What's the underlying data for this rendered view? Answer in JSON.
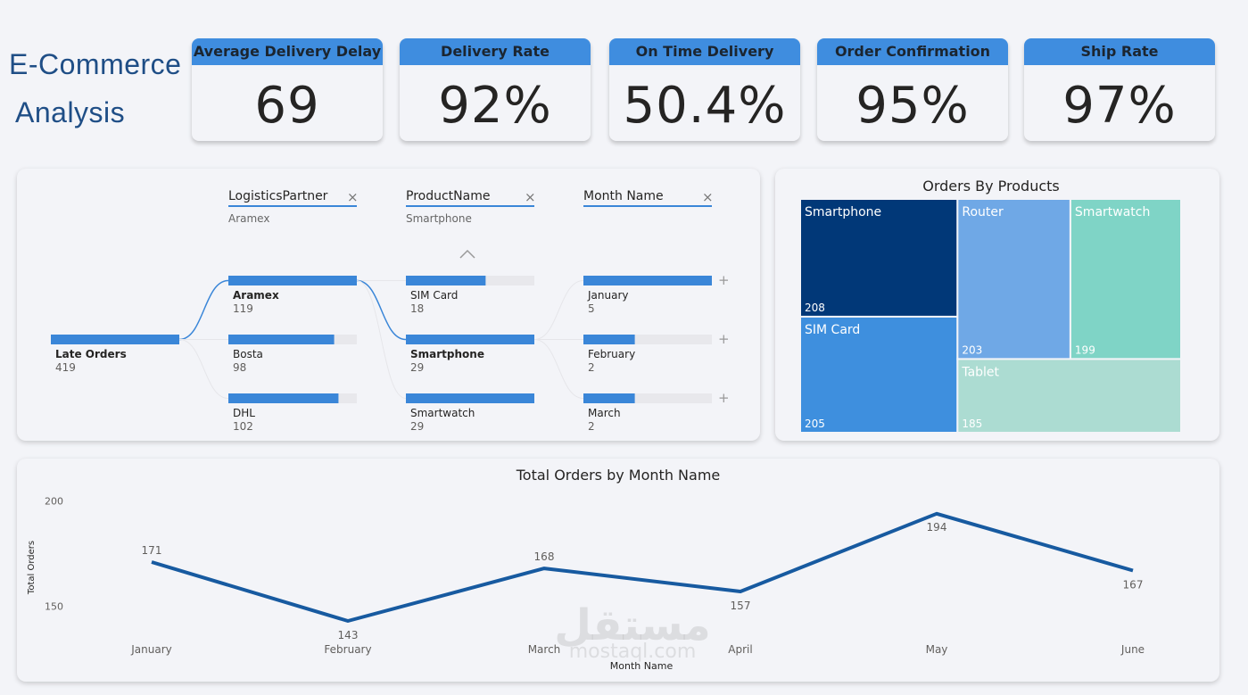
{
  "brand": {
    "line1": "E-Commerce",
    "line2": "Analysis"
  },
  "kpis": [
    {
      "label": "Average Delivery Delay",
      "value": "69"
    },
    {
      "label": "Delivery Rate",
      "value": "92%"
    },
    {
      "label": "On Time Delivery",
      "value": "50.4%"
    },
    {
      "label": "Order Confirmation",
      "value": "95%"
    },
    {
      "label": "Ship Rate",
      "value": "97%"
    }
  ],
  "decomposition": {
    "root": {
      "label": "Late Orders",
      "value": 419
    },
    "levels": [
      {
        "field": "LogisticsPartner",
        "selected": "Aramex",
        "items": [
          {
            "label": "Aramex",
            "value": 119
          },
          {
            "label": "Bosta",
            "value": 98
          },
          {
            "label": "DHL",
            "value": 102
          }
        ]
      },
      {
        "field": "ProductName",
        "selected": "Smartphone",
        "items": [
          {
            "label": "SIM Card",
            "value": 18
          },
          {
            "label": "Smartphone",
            "value": 29
          },
          {
            "label": "Smartwatch",
            "value": 29
          }
        ]
      },
      {
        "field": "Month Name",
        "selected": "",
        "items": [
          {
            "label": "January",
            "value": 5
          },
          {
            "label": "February",
            "value": 2
          },
          {
            "label": "March",
            "value": 2
          }
        ]
      }
    ],
    "close_glyph": "×",
    "expand_glyph": "+",
    "colors": {
      "bar": "#3a86d8",
      "track": "#e8e8ec",
      "link": "#3a86d8"
    }
  },
  "chart_data": [
    {
      "type": "treemap",
      "title": "Orders By Products",
      "items": [
        {
          "label": "Smartphone",
          "value": 208,
          "color": "#013878"
        },
        {
          "label": "SIM Card",
          "value": 205,
          "color": "#3e8fde"
        },
        {
          "label": "Router",
          "value": 203,
          "color": "#6fa8e6"
        },
        {
          "label": "Smartwatch",
          "value": 199,
          "color": "#7fd4c6"
        },
        {
          "label": "Tablet",
          "value": 185,
          "color": "#acdcd2"
        }
      ]
    },
    {
      "type": "line",
      "title": "Total Orders by Month Name",
      "xlabel": "Month Name",
      "ylabel": "Total Orders",
      "categories": [
        "January",
        "February",
        "March",
        "April",
        "May",
        "June"
      ],
      "values": [
        171,
        143,
        168,
        157,
        194,
        167
      ],
      "yticks": [
        150,
        200
      ],
      "ylim": [
        143,
        202
      ],
      "color": "#175aa0",
      "grid": false
    }
  ],
  "watermark": {
    "arabic": "مستقل",
    "latin": "mostaql.com"
  }
}
